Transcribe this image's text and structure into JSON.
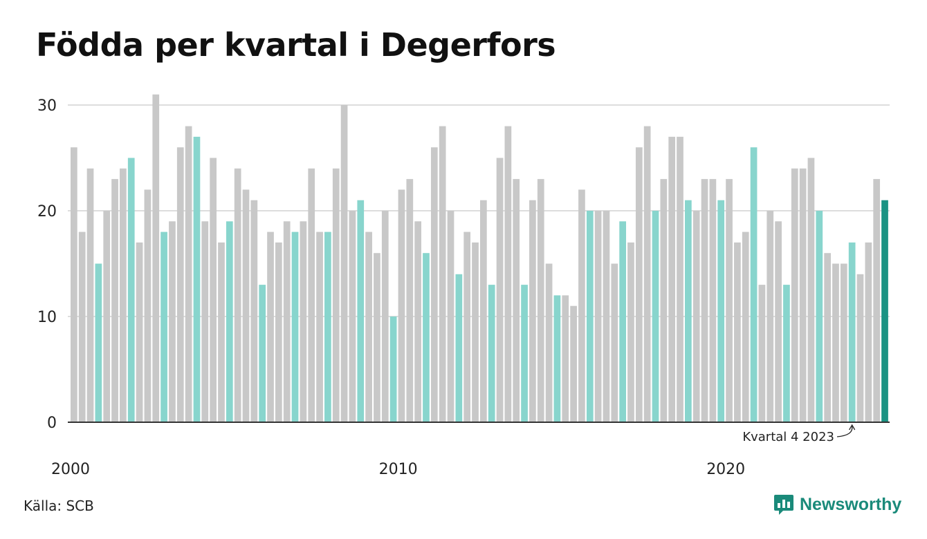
{
  "title": "Födda per kvartal i Degerfors",
  "source": "Källa: SCB",
  "brand": "Newsworthy",
  "colors": {
    "default": "#c8c8c8",
    "highlight": "#88d5cd",
    "latest": "#1b9383",
    "grid": "#dddddd",
    "axis": "#333333"
  },
  "chart_data": {
    "type": "bar",
    "title": "Födda per kvartal i Degerfors",
    "xlabel": "",
    "ylabel": "",
    "ylim": [
      0,
      30
    ],
    "yticks": [
      0,
      10,
      20,
      30
    ],
    "xticks": [
      {
        "label": "2000",
        "index": 0
      },
      {
        "label": "2010",
        "index": 40
      },
      {
        "label": "2020",
        "index": 80
      }
    ],
    "start_year": 2000,
    "values": [
      26,
      18,
      24,
      15,
      20,
      23,
      24,
      25,
      17,
      22,
      31,
      18,
      19,
      26,
      28,
      27,
      19,
      25,
      17,
      19,
      24,
      22,
      21,
      13,
      18,
      17,
      19,
      18,
      19,
      24,
      18,
      18,
      24,
      30,
      20,
      21,
      18,
      16,
      20,
      10,
      22,
      23,
      19,
      16,
      26,
      28,
      20,
      14,
      18,
      17,
      21,
      13,
      25,
      28,
      23,
      13,
      21,
      23,
      15,
      12,
      12,
      11,
      22,
      20,
      20,
      20,
      15,
      19,
      17,
      26,
      28,
      20,
      23,
      27,
      27,
      21,
      20,
      23,
      23,
      21,
      23,
      17,
      18,
      26,
      13,
      20,
      19,
      13,
      24,
      24,
      25,
      20,
      16,
      15,
      15,
      17,
      14,
      17,
      23,
      21
    ],
    "highlight_indices": [
      3,
      7,
      11,
      15,
      19,
      23,
      27,
      31,
      35,
      39,
      43,
      47,
      51,
      55,
      59,
      63,
      67,
      71,
      75,
      79,
      83,
      87,
      91,
      95
    ],
    "latest_index": 99,
    "annotation": {
      "text": "Kvartal 4 2023",
      "index": 95
    }
  }
}
